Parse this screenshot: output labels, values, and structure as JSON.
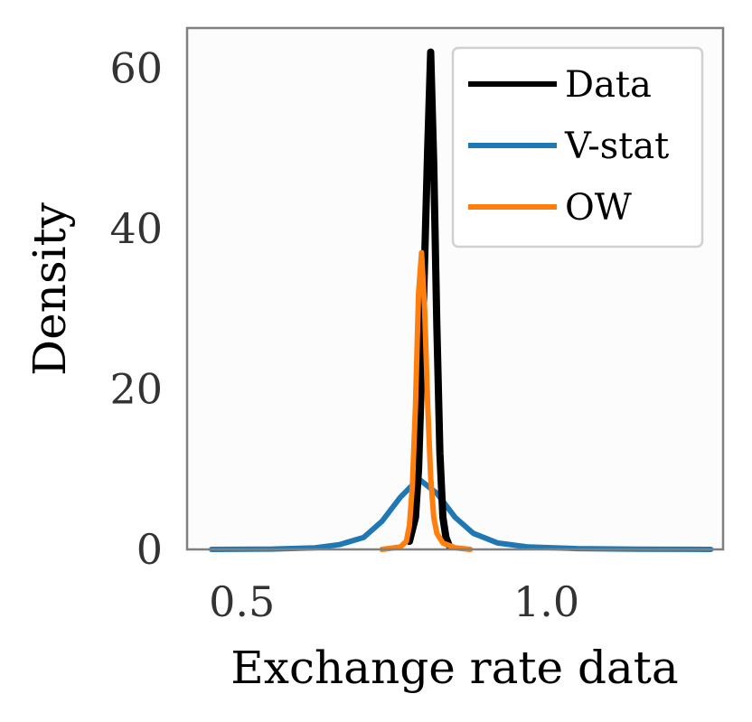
{
  "chart_data": {
    "type": "line",
    "title": "",
    "xlabel": "Exchange rate data",
    "ylabel": "Density",
    "xlim": [
      0.41,
      1.29
    ],
    "ylim": [
      0,
      65
    ],
    "xticks": [
      0.5,
      1.0
    ],
    "xtick_labels": [
      "0.5",
      "1.0"
    ],
    "yticks": [
      0,
      20,
      40,
      60
    ],
    "ytick_labels": [
      "0",
      "20",
      "40",
      "60"
    ],
    "grid": false,
    "legend_position": "top-right",
    "series": [
      {
        "name": "Data",
        "color": "#000000",
        "x": [
          0.775,
          0.785,
          0.79,
          0.795,
          0.8,
          0.805,
          0.81,
          0.815,
          0.82,
          0.825,
          0.83,
          0.835,
          0.84
        ],
        "y": [
          1,
          4,
          10,
          22,
          36,
          50,
          62,
          48,
          28,
          12,
          4,
          1.5,
          0.5
        ]
      },
      {
        "name": "V-stat",
        "color": "#1f77b4",
        "x": [
          0.45,
          0.55,
          0.62,
          0.66,
          0.7,
          0.73,
          0.76,
          0.79,
          0.82,
          0.85,
          0.88,
          0.92,
          0.97,
          1.05,
          1.15,
          1.27
        ],
        "y": [
          0,
          0.05,
          0.2,
          0.6,
          1.5,
          3.5,
          6.5,
          8.8,
          7.0,
          4.0,
          2.0,
          0.8,
          0.3,
          0.1,
          0.03,
          0
        ]
      },
      {
        "name": "OW",
        "color": "#ff7f0e",
        "x": [
          0.73,
          0.76,
          0.77,
          0.775,
          0.78,
          0.785,
          0.79,
          0.795,
          0.8,
          0.805,
          0.81,
          0.815,
          0.82,
          0.83,
          0.85,
          0.875
        ],
        "y": [
          0,
          0.3,
          1,
          3,
          8,
          18,
          32,
          37,
          30,
          18,
          9,
          4,
          2,
          0.8,
          0.2,
          0
        ]
      }
    ]
  }
}
